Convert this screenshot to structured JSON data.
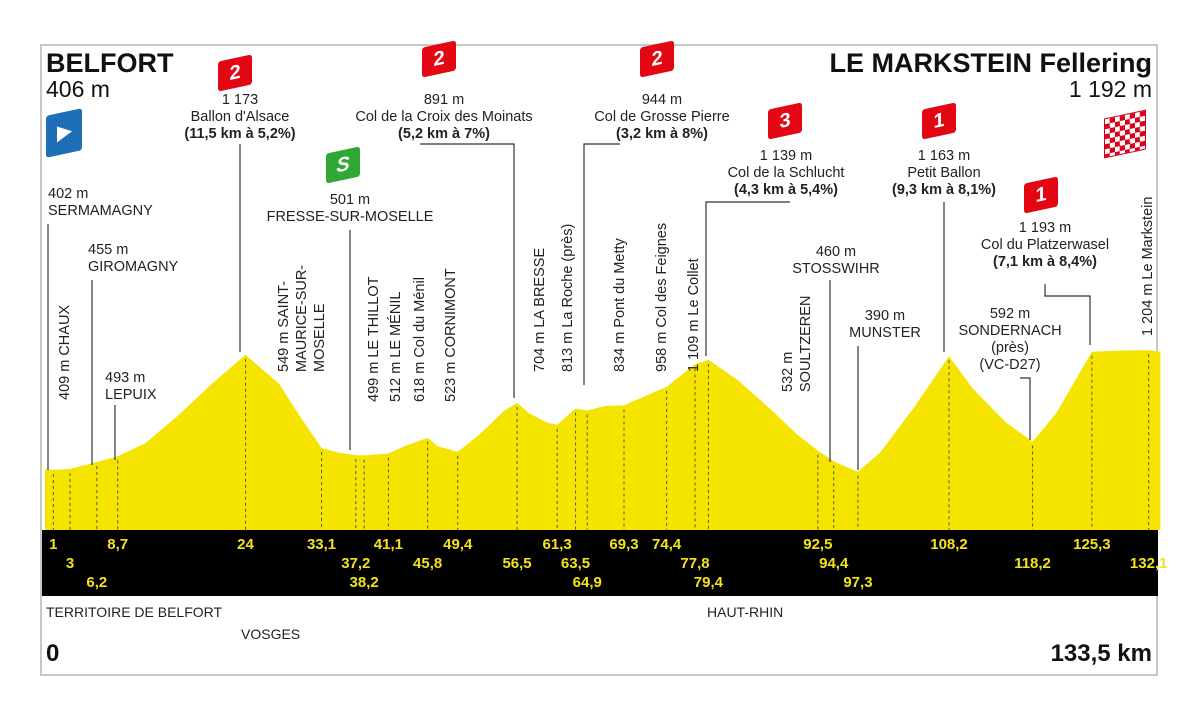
{
  "start": {
    "name": "BELFORT",
    "altitude": "406 m"
  },
  "finish": {
    "name": "LE MARKSTEIN Fellering",
    "altitude": "1 192 m"
  },
  "distance_start": "0",
  "distance_end": "133,5 km",
  "departments": [
    "TERRITOIRE DE BELFORT",
    "VOSGES",
    "HAUT-RHIN"
  ],
  "colors": {
    "profile": "#f5e400",
    "band": "#000000",
    "km_text": "#f3e21c",
    "cat_badge": "#e30613",
    "sprint_badge": "#2fa836",
    "start_flag": "#1d6fb8"
  },
  "climbs": [
    {
      "cat": "2",
      "altitude": "1 173",
      "name": "Ballon d'Alsace",
      "detail": "(11,5 km à 5,2%)"
    },
    {
      "cat": "2",
      "altitude": "891 m",
      "name": "Col de la Croix des Moinats",
      "detail": "(5,2 km à 7%)"
    },
    {
      "cat": "2",
      "altitude": "944 m",
      "name": "Col de Grosse Pierre",
      "detail": "(3,2 km à 8%)"
    },
    {
      "cat": "3",
      "altitude": "1 139 m",
      "name": "Col de la Schlucht",
      "detail": "(4,3 km à 5,4%)"
    },
    {
      "cat": "1",
      "altitude": "1 163 m",
      "name": "Petit Ballon",
      "detail": "(9,3 km à 8,1%)"
    },
    {
      "cat": "1",
      "altitude": "1 193 m",
      "name": "Col du Platzerwasel",
      "detail": "(7,1 km à 8,4%)"
    }
  ],
  "sprint": {
    "label": "S",
    "altitude": "501 m",
    "name": "FRESSE-SUR-MOSELLE"
  },
  "places": [
    {
      "altitude": "402 m",
      "name": "SERMAMAGNY"
    },
    {
      "altitude": "455 m",
      "name": "GIROMAGNY"
    },
    {
      "altitude": "493 m",
      "name": "LEPUIX"
    },
    {
      "altitude": "460 m",
      "name": "STOSSWIHR"
    },
    {
      "altitude": "390 m",
      "name": "MUNSTER"
    },
    {
      "altitude": "592 m",
      "name": "SONDERNACH",
      "note1": "(près)",
      "note2": "(VC-D27)"
    }
  ],
  "vertical_places": [
    "409 m CHAUX",
    "549 m SAINT-",
    "MAURICE-SUR-",
    "MOSELLE",
    "499 m LE THILLOT",
    "512 m LE MÉNIL",
    "618 m Col du Ménil",
    "523 m CORNIMONT",
    "704 m LA BRESSE",
    "813 m La Roche (près)",
    "834 m Pont du Metty",
    "958 m Col des Feignes",
    "1 109 m Le Collet",
    "532 m",
    "SOULTZEREN",
    "1 204 m Le Markstein"
  ],
  "chart_data": {
    "type": "area",
    "xlabel": "",
    "ylabel": "",
    "xlim": [
      0,
      133.5
    ],
    "ylim": [
      0,
      1300
    ],
    "km_markers": [
      "1",
      "3",
      "6,2",
      "8,7",
      "24",
      "33,1",
      "37,2",
      "38,2",
      "41,1",
      "45,8",
      "49,4",
      "56,5",
      "61,3",
      "63,5",
      "64,9",
      "69,3",
      "74,4",
      "77,8",
      "79,4",
      "92,5",
      "94,4",
      "97,3",
      "108,2",
      "118,2",
      "125,3",
      "132,1"
    ],
    "x": [
      0,
      1,
      3,
      6.2,
      8.7,
      12,
      16,
      20,
      24,
      28,
      31,
      33.1,
      35,
      37.2,
      38.2,
      41.1,
      43,
      45.8,
      47,
      49.4,
      52,
      55,
      56.5,
      58,
      60,
      61.3,
      63.5,
      64.9,
      67,
      69.3,
      72,
      74.4,
      77.8,
      79.4,
      83,
      87,
      90,
      92.5,
      94.4,
      96,
      97.3,
      100,
      104,
      108.2,
      111,
      115,
      118.2,
      121,
      125.3,
      128,
      132.1,
      133.5
    ],
    "y": [
      406,
      402,
      409,
      455,
      493,
      580,
      770,
      980,
      1173,
      980,
      720,
      549,
      520,
      501,
      499,
      512,
      560,
      618,
      560,
      523,
      640,
      800,
      850,
      780,
      720,
      704,
      813,
      800,
      830,
      834,
      900,
      958,
      1109,
      1139,
      1000,
      800,
      640,
      532,
      460,
      420,
      390,
      520,
      820,
      1163,
      950,
      720,
      592,
      780,
      1193,
      1200,
      1204,
      1192
    ]
  }
}
